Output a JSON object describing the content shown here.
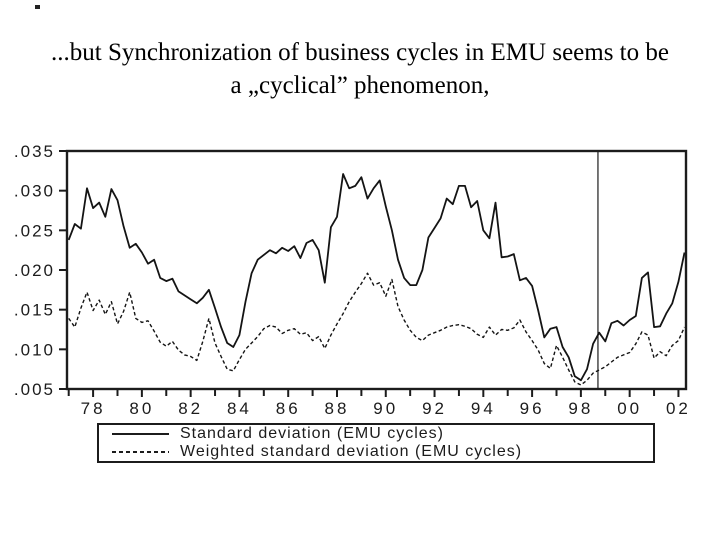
{
  "title": {
    "line1": "...but Synchronization of business cycles in EMU seems to be",
    "line2": "a „cyclical” phenomenon,"
  },
  "legend": {
    "items": [
      {
        "label": "Standard deviation (EMU cycles)",
        "style": "solid"
      },
      {
        "label": "Weighted standard deviation (EMU cycles)",
        "style": "dashed"
      }
    ]
  },
  "chart_data": {
    "type": "line",
    "title": "",
    "xlabel": "",
    "ylabel": "",
    "xlim": [
      1976.93,
      2002.31
    ],
    "ylim": [
      0.005,
      0.035
    ],
    "x_start": 1977.0,
    "x_step": 0.25,
    "grid": false,
    "legend_position": "bottom",
    "vline_x": 1998.7,
    "yticks": {
      "values": [
        0.035,
        0.03,
        0.025,
        0.02,
        0.015,
        0.01,
        0.005
      ],
      "labels": [
        ".035",
        ".030",
        ".025",
        ".020",
        ".015",
        ".010",
        ".005"
      ]
    },
    "xticks": {
      "values": [
        1978,
        1980,
        1982,
        1984,
        1986,
        1988,
        1990,
        1992,
        1994,
        1996,
        1998,
        2000,
        2002
      ],
      "labels": [
        "78",
        "80",
        "82",
        "84",
        "86",
        "88",
        "90",
        "92",
        "94",
        "96",
        "98",
        "00",
        "02"
      ]
    },
    "minor_xtick_years": [
      1977,
      1979,
      1981,
      1983,
      1985,
      1987,
      1989,
      1991,
      1993,
      1995,
      1997,
      1999,
      2001
    ],
    "series": [
      {
        "name": "Standard deviation (EMU cycles)",
        "style": "solid",
        "values": [
          0.0238,
          0.0258,
          0.0252,
          0.0303,
          0.0278,
          0.0285,
          0.0267,
          0.0302,
          0.0288,
          0.0255,
          0.0228,
          0.0233,
          0.0222,
          0.0208,
          0.0213,
          0.019,
          0.0186,
          0.0189,
          0.0173,
          0.0168,
          0.0163,
          0.0158,
          0.0165,
          0.0175,
          0.0152,
          0.0128,
          0.0108,
          0.0103,
          0.0118,
          0.016,
          0.0196,
          0.0213,
          0.0219,
          0.0225,
          0.0221,
          0.0228,
          0.0224,
          0.023,
          0.0215,
          0.0234,
          0.0238,
          0.0225,
          0.0184,
          0.0254,
          0.0267,
          0.0321,
          0.0303,
          0.0306,
          0.0317,
          0.029,
          0.0303,
          0.0313,
          0.028,
          0.025,
          0.0213,
          0.019,
          0.0181,
          0.0181,
          0.02,
          0.0241,
          0.0253,
          0.0265,
          0.029,
          0.0283,
          0.0306,
          0.0306,
          0.0279,
          0.0287,
          0.025,
          0.024,
          0.0285,
          0.0216,
          0.0217,
          0.022,
          0.0187,
          0.019,
          0.018,
          0.0149,
          0.0115,
          0.0126,
          0.0128,
          0.0103,
          0.009,
          0.0066,
          0.0061,
          0.0075,
          0.0107,
          0.0121,
          0.011,
          0.0133,
          0.0136,
          0.013,
          0.0137,
          0.0142,
          0.019,
          0.0197,
          0.0128,
          0.0129,
          0.0145,
          0.0158,
          0.0185,
          0.0222
        ]
      },
      {
        "name": "Weighted standard deviation (EMU cycles)",
        "style": "dashed",
        "values": [
          0.0139,
          0.0128,
          0.0152,
          0.0172,
          0.0149,
          0.0162,
          0.0144,
          0.016,
          0.0132,
          0.0148,
          0.0172,
          0.0139,
          0.0134,
          0.0136,
          0.0123,
          0.0109,
          0.0104,
          0.011,
          0.0099,
          0.0093,
          0.0091,
          0.0086,
          0.011,
          0.0139,
          0.0108,
          0.0091,
          0.0075,
          0.0073,
          0.0087,
          0.01,
          0.0108,
          0.0116,
          0.0126,
          0.013,
          0.0128,
          0.012,
          0.0124,
          0.0126,
          0.0119,
          0.0121,
          0.0111,
          0.0116,
          0.0101,
          0.0118,
          0.0132,
          0.0145,
          0.016,
          0.0172,
          0.0183,
          0.0196,
          0.0181,
          0.0184,
          0.0167,
          0.0188,
          0.0154,
          0.0137,
          0.0124,
          0.0115,
          0.0111,
          0.0118,
          0.0121,
          0.0124,
          0.0128,
          0.013,
          0.0131,
          0.0129,
          0.0126,
          0.0119,
          0.0115,
          0.0128,
          0.0118,
          0.0125,
          0.0124,
          0.0127,
          0.0137,
          0.0122,
          0.0111,
          0.0099,
          0.0082,
          0.0076,
          0.0105,
          0.009,
          0.0074,
          0.0059,
          0.0055,
          0.0061,
          0.007,
          0.0074,
          0.0078,
          0.0084,
          0.009,
          0.0093,
          0.0096,
          0.0107,
          0.0122,
          0.0118,
          0.0089,
          0.0097,
          0.0092,
          0.0105,
          0.0111,
          0.0128
        ]
      }
    ]
  }
}
